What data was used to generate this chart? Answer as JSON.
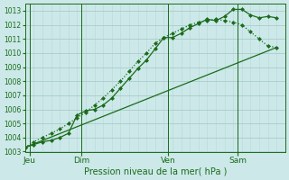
{
  "background_color": "#cce8e8",
  "grid_major_color": "#aacccc",
  "grid_minor_color": "#b8d8d8",
  "line_color": "#1a6b1a",
  "title": "Pression niveau de la mer( hPa )",
  "ylim": [
    1003,
    1013.5
  ],
  "yticks": [
    1003,
    1004,
    1005,
    1006,
    1007,
    1008,
    1009,
    1010,
    1011,
    1012,
    1013
  ],
  "xlim": [
    0,
    30
  ],
  "day_labels": [
    "Jeu",
    "Dim",
    "Ven",
    "Sam"
  ],
  "day_positions": [
    0.5,
    6.5,
    16.5,
    24.5
  ],
  "vline_positions": [
    0.5,
    6.5,
    16.5,
    24.5
  ],
  "line1_x": [
    0,
    1,
    2,
    3,
    4,
    5,
    6,
    7,
    8,
    9,
    10,
    11,
    12,
    13,
    14,
    15,
    16,
    17,
    18,
    19,
    20,
    21,
    22,
    23,
    24,
    25,
    26,
    27,
    28,
    29
  ],
  "line1_y": [
    1003.3,
    1003.7,
    1004.0,
    1004.3,
    1004.6,
    1005.0,
    1005.4,
    1005.8,
    1006.3,
    1006.8,
    1007.4,
    1008.0,
    1008.7,
    1009.4,
    1010.0,
    1010.7,
    1011.1,
    1011.4,
    1011.7,
    1012.0,
    1012.2,
    1012.3,
    1012.4,
    1012.3,
    1012.2,
    1012.0,
    1011.5,
    1011.0,
    1010.5,
    1010.4
  ],
  "line2_x": [
    0,
    1,
    2,
    3,
    4,
    5,
    6,
    7,
    8,
    9,
    10,
    11,
    12,
    13,
    14,
    15,
    16,
    17,
    18,
    19,
    20,
    21,
    22,
    23,
    24,
    25,
    26,
    27,
    28,
    29
  ],
  "line2_y": [
    1003.3,
    1003.5,
    1003.7,
    1003.8,
    1004.0,
    1004.3,
    1005.6,
    1005.9,
    1006.0,
    1006.3,
    1006.8,
    1007.5,
    1008.2,
    1008.9,
    1009.5,
    1010.3,
    1011.1,
    1011.1,
    1011.4,
    1011.8,
    1012.1,
    1012.4,
    1012.3,
    1012.6,
    1013.1,
    1013.1,
    1012.7,
    1012.5,
    1012.6,
    1012.5
  ],
  "line3_x": [
    0,
    29
  ],
  "line3_y": [
    1003.3,
    1010.4
  ]
}
